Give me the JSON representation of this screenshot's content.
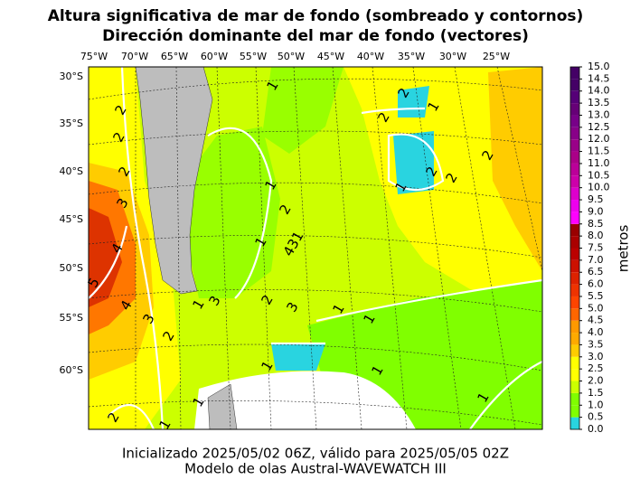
{
  "title": [
    "Altura significativa de mar de fondo (sombreado y contornos)",
    "Dirección dominante del mar de fondo (vectores)"
  ],
  "lon_labels": [
    "75°W",
    "70°W",
    "65°W",
    "60°W",
    "55°W",
    "50°W",
    "45°W",
    "40°W",
    "35°W",
    "30°W",
    "25°W"
  ],
  "lat_labels": [
    "30°S",
    "35°S",
    "40°S",
    "45°S",
    "50°S",
    "55°S",
    "60°S"
  ],
  "contour_labels": [
    "1",
    "2",
    "1",
    "2",
    "2",
    "2",
    "2",
    "2",
    "2",
    "1",
    "2",
    "1",
    "3",
    "2",
    "4",
    "1",
    "431",
    "5",
    "4",
    "3",
    "1",
    "2",
    "3",
    "1",
    "1",
    "3",
    "2",
    "1",
    "1",
    "2",
    "1",
    "1",
    "1"
  ],
  "colorbar": {
    "label": "metros",
    "lim": [
      0,
      15
    ],
    "ticks": [
      {
        "value": 0,
        "label": "0.0"
      },
      {
        "value": 0.5,
        "label": "0.5"
      },
      {
        "value": 1,
        "label": "1.0"
      },
      {
        "value": 1.5,
        "label": "1.5"
      },
      {
        "value": 2,
        "label": "2.0"
      },
      {
        "value": 2.5,
        "label": "2.5"
      },
      {
        "value": 3,
        "label": "3.0"
      },
      {
        "value": 3.5,
        "label": "3.5"
      },
      {
        "value": 4,
        "label": "4.0"
      },
      {
        "value": 4.5,
        "label": "4.5"
      },
      {
        "value": 5,
        "label": "5.0"
      },
      {
        "value": 5.5,
        "label": "5.5"
      },
      {
        "value": 6,
        "label": "6.0"
      },
      {
        "value": 6.5,
        "label": "6.5"
      },
      {
        "value": 7,
        "label": "7.0"
      },
      {
        "value": 7.5,
        "label": "7.5"
      },
      {
        "value": 8,
        "label": "8.0"
      },
      {
        "value": 8.5,
        "label": "8.5"
      },
      {
        "value": 9,
        "label": "9.0"
      },
      {
        "value": 9.5,
        "label": "9.5"
      },
      {
        "value": 10,
        "label": "10.0"
      },
      {
        "value": 10.5,
        "label": "10.5"
      },
      {
        "value": 11,
        "label": "11.0"
      },
      {
        "value": 11.5,
        "label": "11.5"
      },
      {
        "value": 12,
        "label": "12.0"
      },
      {
        "value": 12.5,
        "label": "12.5"
      },
      {
        "value": 13,
        "label": "13.0"
      },
      {
        "value": 13.5,
        "label": "13.5"
      },
      {
        "value": 14,
        "label": "14.0"
      },
      {
        "value": 14.5,
        "label": "14.5"
      },
      {
        "value": 15,
        "label": "15.0"
      }
    ],
    "colors": [
      "#29d4e0",
      "#80ff00",
      "#80ff00",
      "#ccff00",
      "#ffff00",
      "#ffff00",
      "#ffcc00",
      "#ffaa00",
      "#ff9900",
      "#ff6600",
      "#ff4400",
      "#ee3300",
      "#dd2200",
      "#cc1100",
      "#bb0000",
      "#aa0000",
      "#990000",
      "#ff00ff",
      "#ee00ee",
      "#dd00cc",
      "#cc00aa",
      "#bb0099",
      "#aa0088",
      "#990088",
      "#880088",
      "#770088",
      "#660077",
      "#550077",
      "#440066",
      "#440066"
    ]
  },
  "footer": [
    "Inicializado 2025/05/02 06Z, válido para 2025/05/05 02Z",
    "Modelo de olas Austral-WAVEWATCH III"
  ]
}
